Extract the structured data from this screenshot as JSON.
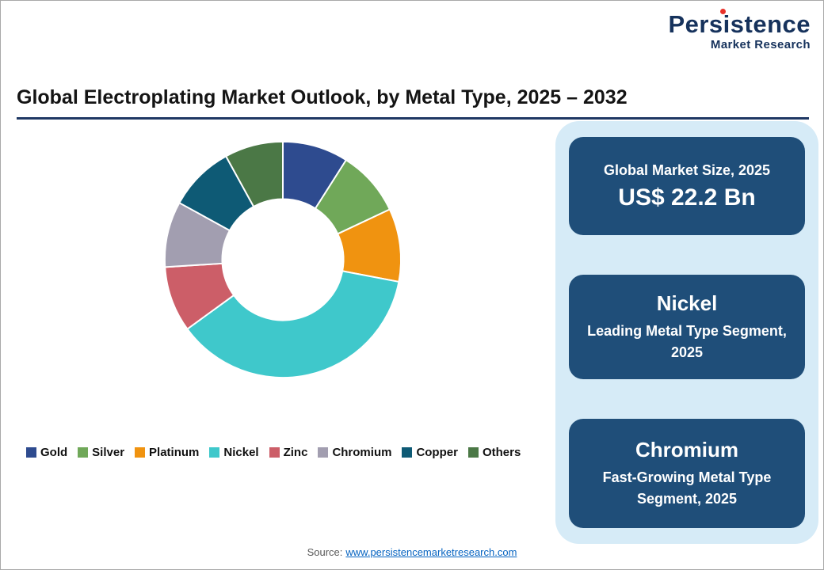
{
  "logo": {
    "name": "Persistence",
    "tagline": "Market Research",
    "accent_color": "#E8312A",
    "text_color": "#16325C"
  },
  "header": {
    "title": "Global Electroplating Market Outlook, by Metal Type, 2025 – 2032"
  },
  "chart_data": {
    "type": "pie",
    "donut": true,
    "title": "Global Electroplating Market Outlook, by Metal Type, 2025 – 2032",
    "legend_position": "bottom",
    "values_are": "estimated_percent_share",
    "series": [
      {
        "name": "Gold",
        "value": 9,
        "color": "#2E4B8F"
      },
      {
        "name": "Silver",
        "value": 9,
        "color": "#70A859"
      },
      {
        "name": "Platinum",
        "value": 10,
        "color": "#F09310"
      },
      {
        "name": "Nickel",
        "value": 37,
        "color": "#3FC8CB"
      },
      {
        "name": "Zinc",
        "value": 9,
        "color": "#CC5E68"
      },
      {
        "name": "Chromium",
        "value": 9,
        "color": "#A29EB0"
      },
      {
        "name": "Copper",
        "value": 9,
        "color": "#0E5A75"
      },
      {
        "name": "Others",
        "value": 8,
        "color": "#4B7846"
      }
    ]
  },
  "panel": {
    "background_color": "#D6EBF7",
    "card_color": "#1F4E79",
    "cards": [
      {
        "title": "Global Market Size, 2025",
        "value": "US$ 22.2 Bn"
      },
      {
        "title": "Nickel",
        "subtitle": "Leading Metal Type Segment, 2025"
      },
      {
        "title": "Chromium",
        "subtitle": "Fast-Growing Metal Type Segment, 2025"
      }
    ]
  },
  "source": {
    "label": "Source:",
    "url": "www.persistencemarketresearch.com"
  }
}
